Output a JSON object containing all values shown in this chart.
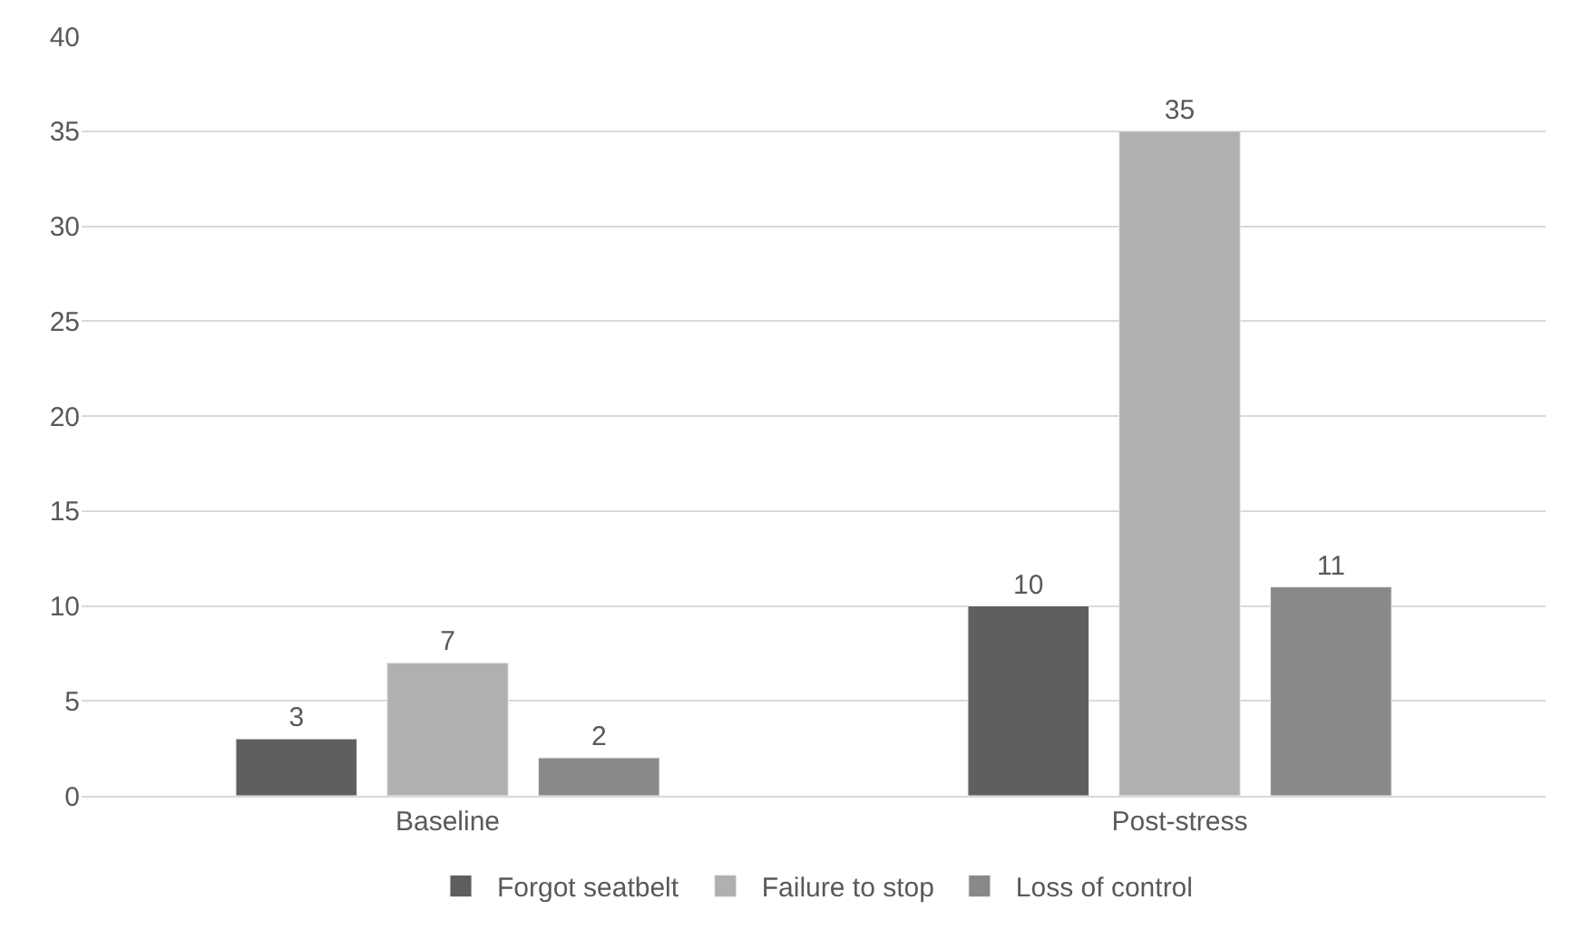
{
  "chart_data": {
    "type": "bar",
    "categories": [
      "Baseline",
      "Post-stress"
    ],
    "series": [
      {
        "name": "Forgot seatbelt",
        "color": "#5f5f5f",
        "values": [
          3,
          10
        ]
      },
      {
        "name": "Failure to stop",
        "color": "#b0b0b0",
        "values": [
          7,
          35
        ]
      },
      {
        "name": "Loss of control",
        "color": "#898989",
        "values": [
          2,
          11
        ]
      }
    ],
    "ylim": [
      0,
      40
    ],
    "yticks": [
      0,
      5,
      10,
      15,
      20,
      25,
      30,
      35,
      40
    ],
    "grid": "y",
    "legend": "bottom",
    "data_labels": true
  }
}
